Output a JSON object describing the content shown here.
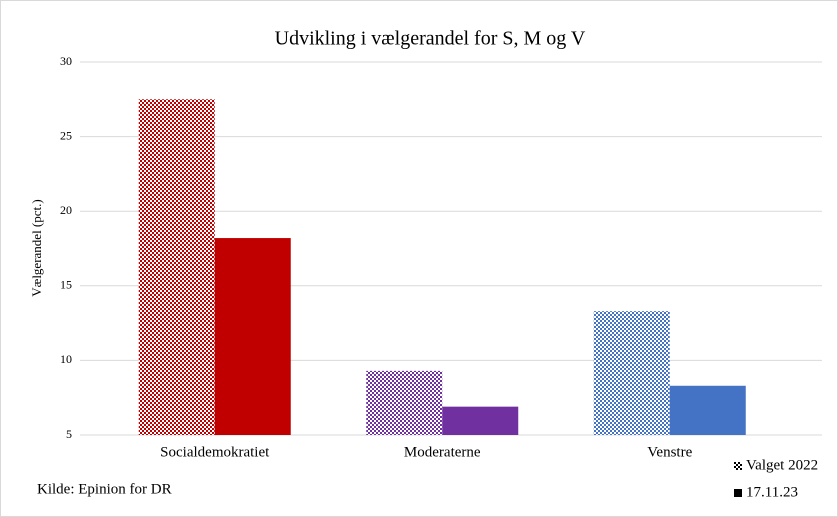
{
  "chart_data": {
    "type": "bar",
    "title": "Udvikling  i vælgerandel  for S, M og V",
    "y_label": "Vælgerandel (pct.)",
    "source": "Kilde: Epinion for DR",
    "categories": [
      "Socialdemokratiet",
      "Moderaterne",
      "Venstre"
    ],
    "colors": [
      "#c00000",
      "#7030a0",
      "#4472c4"
    ],
    "series": [
      {
        "name": "Valget 2022",
        "pattern": "checker",
        "values": [
          27.5,
          9.3,
          13.3
        ]
      },
      {
        "name": "17.11.23",
        "pattern": "solid",
        "values": [
          18.2,
          6.9,
          8.3
        ]
      }
    ],
    "legend_color": "#000000",
    "ylim": [
      5,
      30
    ],
    "yticks": [
      5,
      10,
      15,
      20,
      25,
      30
    ],
    "grid": true
  }
}
